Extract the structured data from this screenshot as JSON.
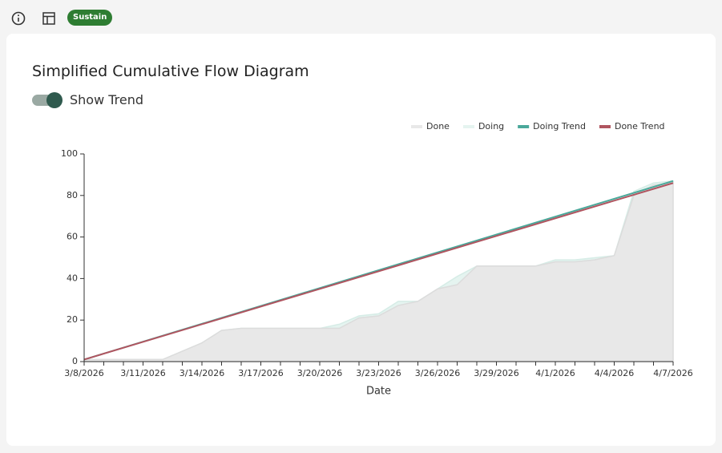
{
  "header": {
    "badge": "Sustain"
  },
  "panel": {
    "title": "Simplified Cumulative Flow Diagram",
    "toggle_label": "Show Trend",
    "toggle_on": true
  },
  "chart_data": {
    "type": "stacked_area",
    "x_label": "Date",
    "x": [
      "3/8/2026",
      "3/9/2026",
      "3/10/2026",
      "3/11/2026",
      "3/12/2026",
      "3/13/2026",
      "3/14/2026",
      "3/15/2026",
      "3/16/2026",
      "3/17/2026",
      "3/18/2026",
      "3/19/2026",
      "3/20/2026",
      "3/21/2026",
      "3/22/2026",
      "3/23/2026",
      "3/24/2026",
      "3/25/2026",
      "3/26/2026",
      "3/27/2026",
      "3/28/2026",
      "3/29/2026",
      "3/30/2026",
      "3/31/2026",
      "4/1/2026",
      "4/2/2026",
      "4/3/2026",
      "4/4/2026",
      "4/5/2026",
      "4/6/2026",
      "4/7/2026"
    ],
    "xticks": [
      "3/8/2026",
      "3/11/2026",
      "3/14/2026",
      "3/17/2026",
      "3/20/2026",
      "3/23/2026",
      "3/26/2026",
      "3/29/2026",
      "4/1/2026",
      "4/4/2026",
      "4/7/2026"
    ],
    "ylim": [
      0,
      100
    ],
    "yticks": [
      0,
      20,
      40,
      60,
      80,
      100
    ],
    "series": [
      {
        "name": "Done",
        "color": "#e8e8e8",
        "line": "#dcdcdc",
        "values": [
          1,
          1,
          1,
          1,
          1,
          5,
          9,
          15,
          16,
          16,
          16,
          16,
          16,
          16,
          21,
          22,
          27,
          29,
          35,
          37,
          46,
          46,
          46,
          46,
          48,
          48,
          49,
          51,
          80,
          85,
          86
        ]
      },
      {
        "name": "Doing",
        "color": "#e5f4f0",
        "line": "#d6ece6",
        "values": [
          0,
          0,
          0,
          0,
          0,
          0,
          0,
          0,
          0,
          0,
          0,
          0,
          0,
          2,
          1,
          1,
          2,
          0,
          0,
          4,
          0,
          0,
          0,
          0,
          1,
          1,
          1,
          0,
          2,
          1,
          1
        ]
      }
    ],
    "trends": [
      {
        "name": "Doing Trend",
        "color": "#4aa89a",
        "x": [
          "3/8/2026",
          "4/7/2026"
        ],
        "values": [
          1,
          87
        ]
      },
      {
        "name": "Done Trend",
        "color": "#b05560",
        "x": [
          "3/8/2026",
          "4/7/2026"
        ],
        "values": [
          1,
          86
        ]
      }
    ]
  }
}
